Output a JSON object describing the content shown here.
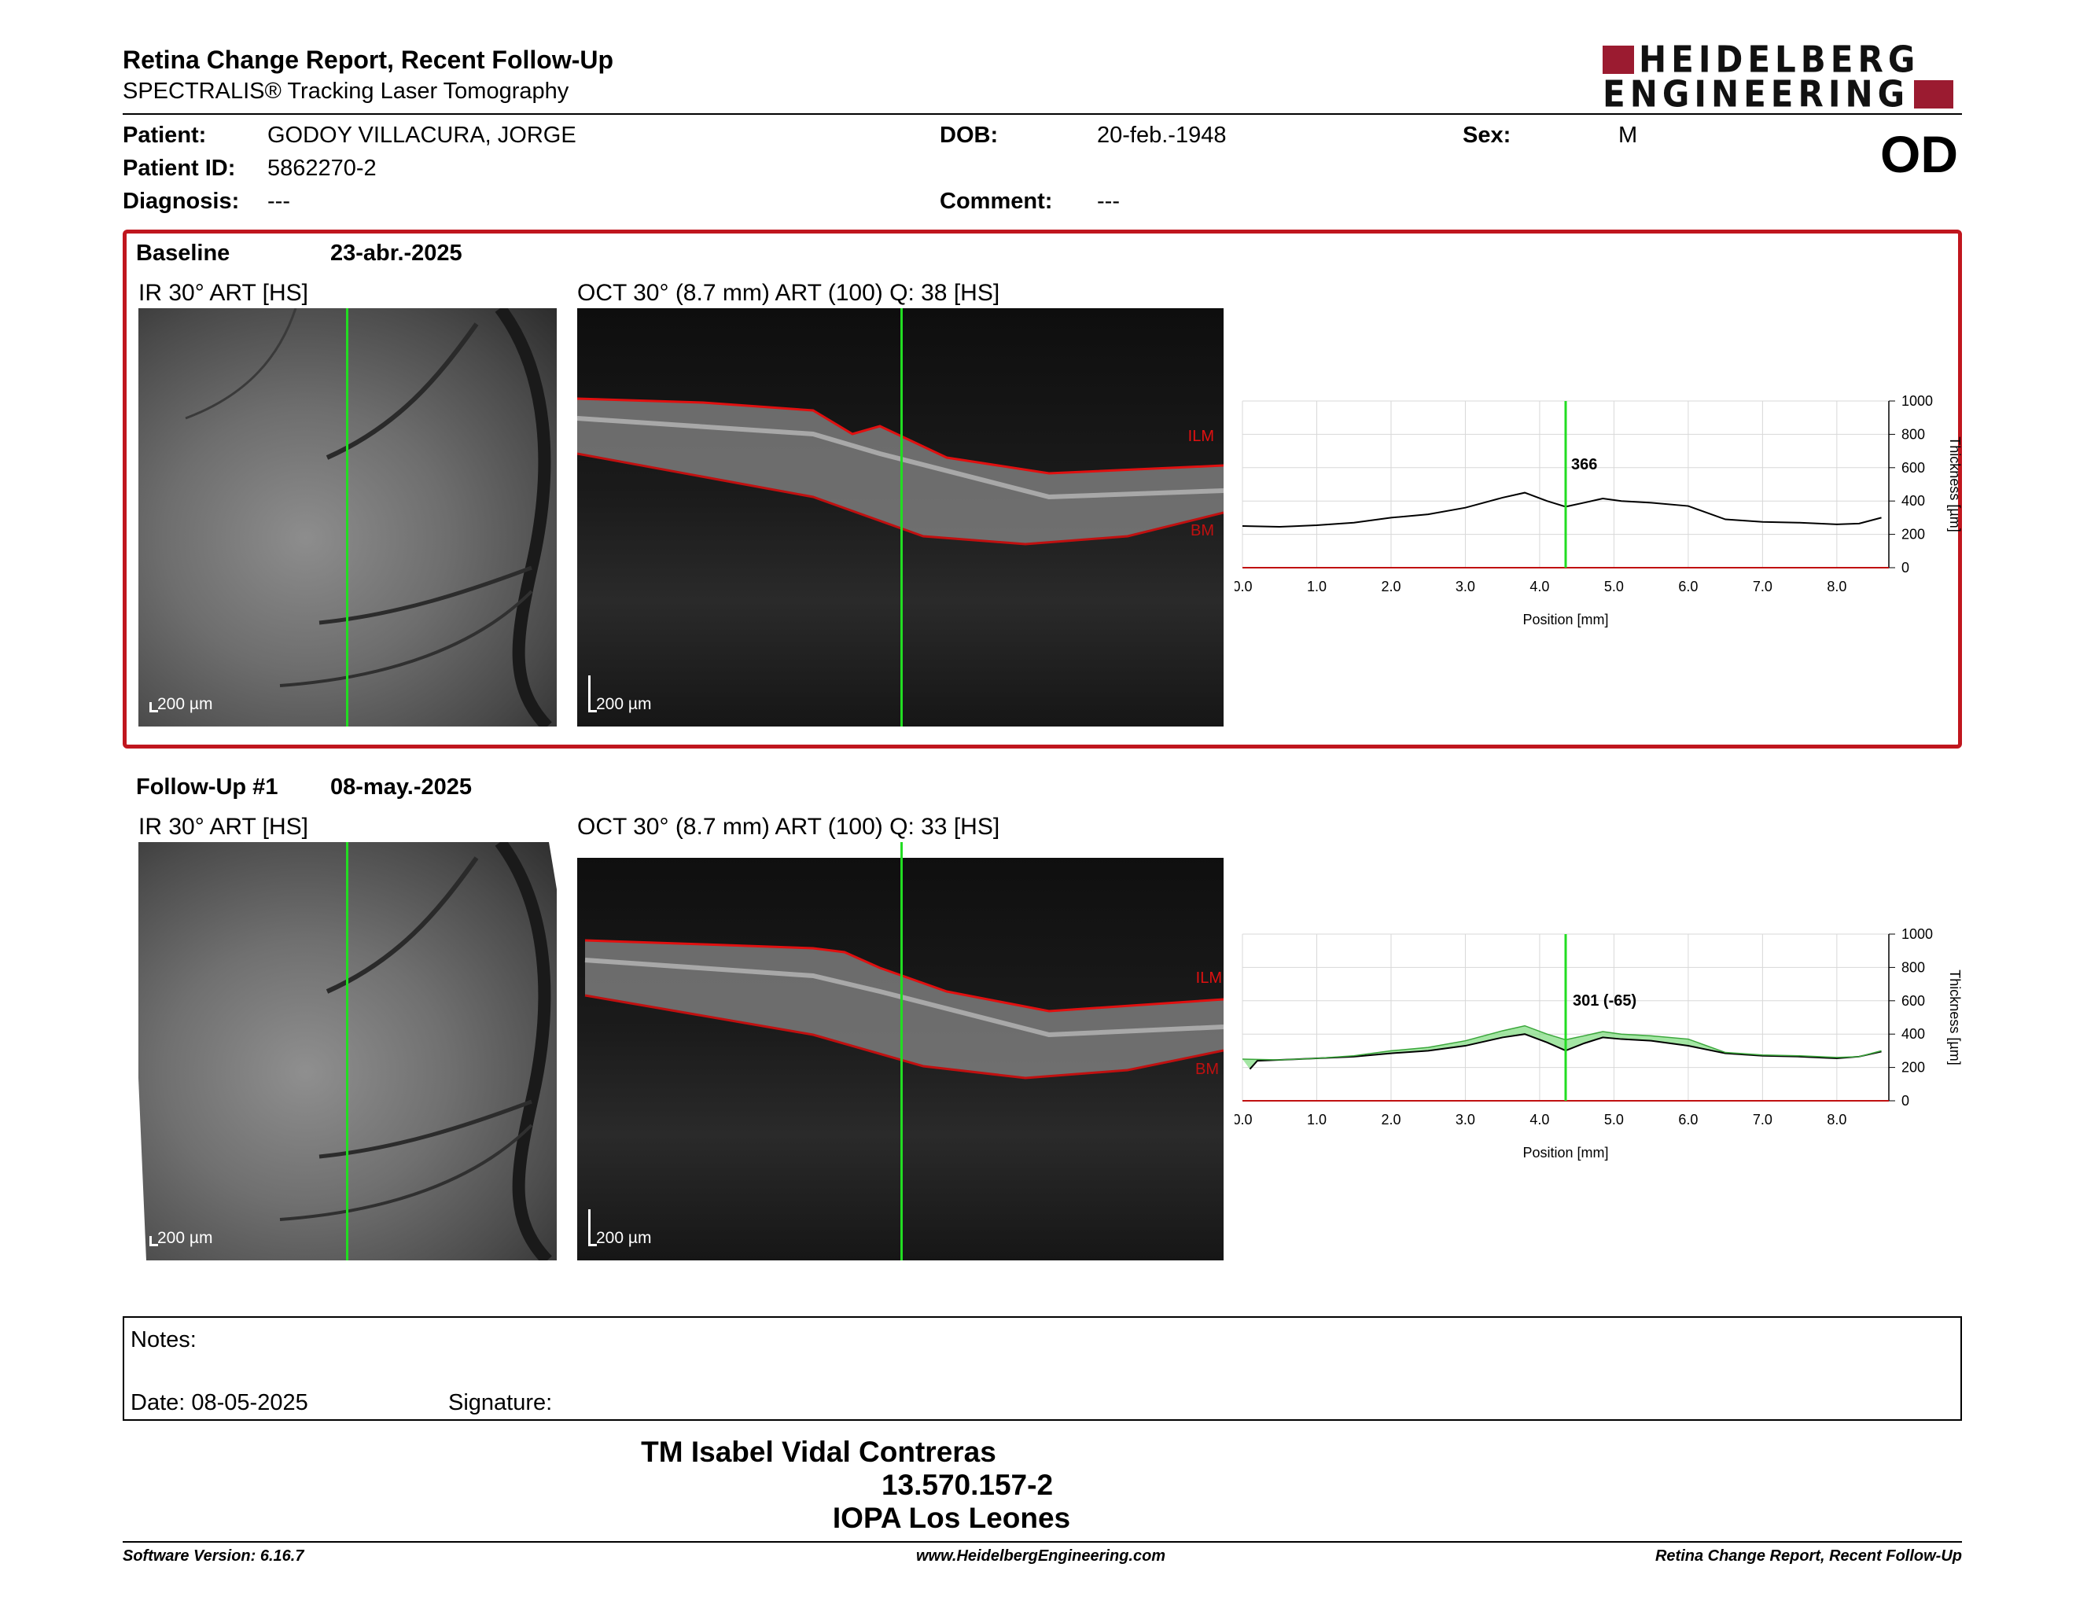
{
  "header": {
    "title": "Retina Change Report, Recent Follow-Up",
    "subtitle": "SPECTRALIS® Tracking Laser Tomography",
    "logo_line1": "HEIDELBERG",
    "logo_line2": "ENGINEERING",
    "eye": "OD"
  },
  "patient": {
    "patient_label": "Patient:",
    "patient_value": "GODOY  VILLACURA, JORGE",
    "id_label": "Patient ID:",
    "id_value": "5862270-2",
    "diagnosis_label": "Diagnosis:",
    "diagnosis_value": "---",
    "dob_label": "DOB:",
    "dob_value": "20-feb.-1948",
    "comment_label": "Comment:",
    "comment_value": "---",
    "sex_label": "Sex:",
    "sex_value": "M"
  },
  "baseline": {
    "name": "Baseline",
    "date": "23-abr.-2025",
    "ir_caption": "IR 30° ART [HS]",
    "oct_caption": "OCT 30° (8.7 mm) ART (100) Q: 38 [HS]",
    "scale": "200 µm",
    "ilm": "ILM",
    "bm": "BM",
    "readout": "366"
  },
  "followup": {
    "name": "Follow-Up #1",
    "date": "08-may.-2025",
    "ir_caption": "IR 30° ART [HS]",
    "oct_caption": "OCT 30° (8.7 mm) ART (100) Q: 33 [HS]",
    "scale": "200 µm",
    "ilm": "ILM",
    "bm": "BM",
    "readout": "301 (-65)"
  },
  "chart_data": [
    {
      "type": "line",
      "xlabel": "Position [mm]",
      "ylabel": "Thickness [µm]",
      "xlim": [
        0,
        8.7
      ],
      "ylim": [
        0,
        1000
      ],
      "xticks": [
        "0.0",
        "1.0",
        "2.0",
        "3.0",
        "4.0",
        "5.0",
        "6.0",
        "7.0",
        "8.0"
      ],
      "yticks": [
        "0",
        "200",
        "400",
        "600",
        "800",
        "1000"
      ],
      "cursor_x": 4.35,
      "series": [
        {
          "x": [
            0.0,
            0.5,
            1.0,
            1.5,
            2.0,
            2.5,
            3.0,
            3.5,
            3.8,
            4.1,
            4.35,
            4.6,
            4.85,
            5.1,
            5.5,
            6.0,
            6.5,
            7.0,
            7.5,
            8.0,
            8.3,
            8.6
          ],
          "y": [
            250,
            245,
            255,
            270,
            300,
            320,
            360,
            420,
            450,
            400,
            366,
            390,
            415,
            400,
            390,
            370,
            290,
            275,
            270,
            260,
            265,
            300
          ]
        }
      ]
    },
    {
      "type": "line",
      "xlabel": "Position [mm]",
      "ylabel": "Thickness [µm]",
      "xlim": [
        0,
        8.7
      ],
      "ylim": [
        0,
        1000
      ],
      "xticks": [
        "0.0",
        "1.0",
        "2.0",
        "3.0",
        "4.0",
        "5.0",
        "6.0",
        "7.0",
        "8.0"
      ],
      "yticks": [
        "0",
        "200",
        "400",
        "600",
        "800",
        "1000"
      ],
      "cursor_x": 4.35,
      "series": [
        {
          "x": [
            0.0,
            0.5,
            1.0,
            1.5,
            2.0,
            2.5,
            3.0,
            3.5,
            3.8,
            4.1,
            4.35,
            4.6,
            4.85,
            5.1,
            5.5,
            6.0,
            6.5,
            7.0,
            7.5,
            8.0,
            8.3,
            8.6
          ],
          "y": [
            250,
            245,
            255,
            270,
            300,
            320,
            360,
            420,
            450,
            400,
            366,
            390,
            415,
            400,
            390,
            370,
            290,
            275,
            270,
            260,
            265,
            300
          ]
        },
        {
          "x": [
            0.1,
            0.2,
            0.5,
            1.0,
            1.5,
            2.0,
            2.5,
            3.0,
            3.5,
            3.8,
            4.1,
            4.35,
            4.6,
            4.85,
            5.1,
            5.5,
            6.0,
            6.5,
            7.0,
            7.5,
            8.0,
            8.3,
            8.6
          ],
          "y": [
            190,
            240,
            245,
            255,
            265,
            285,
            300,
            330,
            380,
            400,
            350,
            301,
            345,
            380,
            370,
            360,
            330,
            285,
            270,
            265,
            255,
            265,
            295
          ]
        }
      ]
    }
  ],
  "notes": {
    "notes_label": "Notes:",
    "date_label": "Date: 08-05-2025",
    "signature_label": "Signature:"
  },
  "signature_block": {
    "name": "TM Isabel Vidal Contreras",
    "id": "13.570.157-2",
    "org": "IOPA Los Leones"
  },
  "footer": {
    "software": "Software Version: 6.16.7",
    "url": "www.HeidelbergEngineering.com",
    "report": "Retina Change Report, Recent Follow-Up"
  }
}
